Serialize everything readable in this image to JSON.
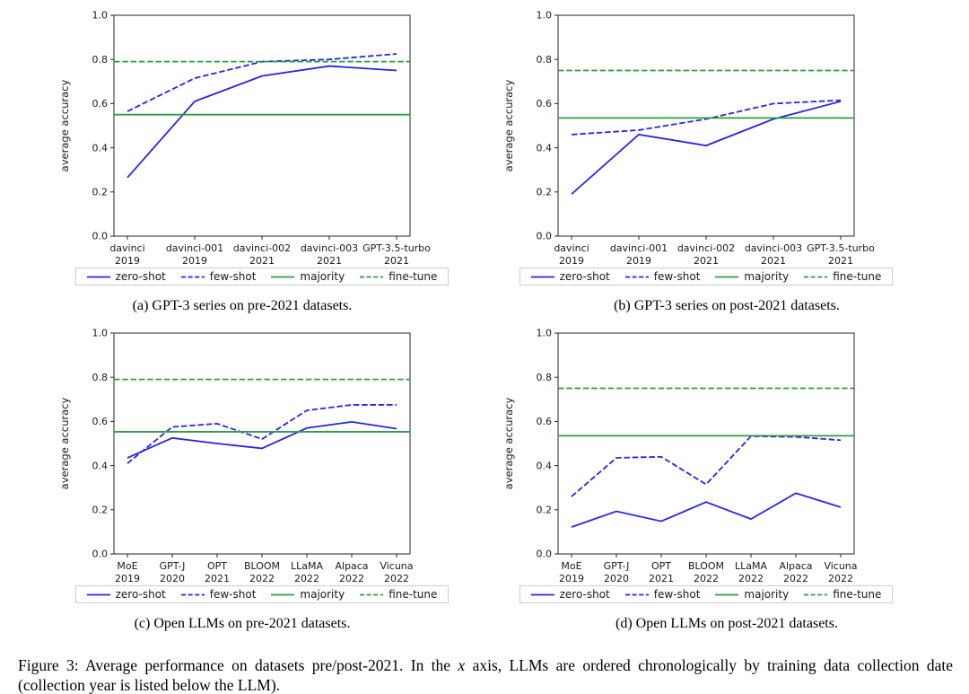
{
  "figure": {
    "caption_prefix": "Figure 3: Average performance on datasets pre/post-2021. In the ",
    "caption_italic": "x",
    "caption_suffix": " axis, LLMs are ordered chronologically by training data collection date (collection year is listed below the LLM)."
  },
  "palette": {
    "blue": "#2626e6",
    "green": "#2e9e40",
    "axis": "#262626",
    "text": "#1a1a1a",
    "legend_border": "#cccccc",
    "background": "#ffffff"
  },
  "chart_data": [
    {
      "id": "a",
      "type": "line",
      "caption": "(a) GPT-3 series on pre-2021 datasets.",
      "ylabel": "average accuracy",
      "ylim": [
        0.0,
        1.0
      ],
      "yticks": [
        0.0,
        0.2,
        0.4,
        0.6,
        0.8,
        1.0
      ],
      "ytick_labels": [
        "0.0",
        "0.2",
        "0.4",
        "0.6",
        "0.8",
        "1.0"
      ],
      "grid": false,
      "legend_position": "below",
      "categories": [
        {
          "label": "davinci",
          "year": "2019"
        },
        {
          "label": "davinci-001",
          "year": "2019"
        },
        {
          "label": "davinci-002",
          "year": "2021"
        },
        {
          "label": "davinci-003",
          "year": "2021"
        },
        {
          "label": "GPT-3.5-turbo",
          "year": "2021"
        }
      ],
      "series": [
        {
          "name": "zero-shot",
          "type": "line",
          "color": "#2626e6",
          "style": "solid",
          "values": [
            0.265,
            0.61,
            0.725,
            0.77,
            0.75
          ]
        },
        {
          "name": "few-shot",
          "type": "line",
          "color": "#2626e6",
          "style": "dashed",
          "values": [
            0.565,
            0.715,
            0.79,
            0.8,
            0.825
          ]
        },
        {
          "name": "majority",
          "type": "hline",
          "color": "#2e9e40",
          "style": "solid",
          "value": 0.55
        },
        {
          "name": "fine-tune",
          "type": "hline",
          "color": "#2e9e40",
          "style": "dashed",
          "value": 0.79
        }
      ]
    },
    {
      "id": "b",
      "type": "line",
      "caption": "(b) GPT-3 series on post-2021 datasets.",
      "ylabel": "average accuracy",
      "ylim": [
        0.0,
        1.0
      ],
      "yticks": [
        0.0,
        0.2,
        0.4,
        0.6,
        0.8,
        1.0
      ],
      "ytick_labels": [
        "0.0",
        "0.2",
        "0.4",
        "0.6",
        "0.8",
        "1.0"
      ],
      "grid": false,
      "legend_position": "below",
      "categories": [
        {
          "label": "davinci",
          "year": "2019"
        },
        {
          "label": "davinci-001",
          "year": "2019"
        },
        {
          "label": "davinci-002",
          "year": "2021"
        },
        {
          "label": "davinci-003",
          "year": "2021"
        },
        {
          "label": "GPT-3.5-turbo",
          "year": "2021"
        }
      ],
      "series": [
        {
          "name": "zero-shot",
          "type": "line",
          "color": "#2626e6",
          "style": "solid",
          "values": [
            0.19,
            0.46,
            0.41,
            0.53,
            0.61
          ]
        },
        {
          "name": "few-shot",
          "type": "line",
          "color": "#2626e6",
          "style": "dashed",
          "values": [
            0.46,
            0.48,
            0.53,
            0.6,
            0.615
          ]
        },
        {
          "name": "majority",
          "type": "hline",
          "color": "#2e9e40",
          "style": "solid",
          "value": 0.535
        },
        {
          "name": "fine-tune",
          "type": "hline",
          "color": "#2e9e40",
          "style": "dashed",
          "value": 0.75
        }
      ]
    },
    {
      "id": "c",
      "type": "line",
      "caption": "(c) Open LLMs on pre-2021 datasets.",
      "ylabel": "average accuracy",
      "ylim": [
        0.0,
        1.0
      ],
      "yticks": [
        0.0,
        0.2,
        0.4,
        0.6,
        0.8,
        1.0
      ],
      "ytick_labels": [
        "0.0",
        "0.2",
        "0.4",
        "0.6",
        "0.8",
        "1.0"
      ],
      "grid": false,
      "legend_position": "below",
      "categories": [
        {
          "label": "MoE",
          "year": "2019"
        },
        {
          "label": "GPT-J",
          "year": "2020"
        },
        {
          "label": "OPT",
          "year": "2021"
        },
        {
          "label": "BLOOM",
          "year": "2022"
        },
        {
          "label": "LLaMA",
          "year": "2022"
        },
        {
          "label": "Alpaca",
          "year": "2022"
        },
        {
          "label": "Vicuna",
          "year": "2022"
        }
      ],
      "series": [
        {
          "name": "zero-shot",
          "type": "line",
          "color": "#2626e6",
          "style": "solid",
          "values": [
            0.435,
            0.525,
            0.5,
            0.478,
            0.57,
            0.598,
            0.567
          ]
        },
        {
          "name": "few-shot",
          "type": "line",
          "color": "#2626e6",
          "style": "dashed",
          "values": [
            0.41,
            0.575,
            0.59,
            0.52,
            0.65,
            0.675,
            0.675
          ]
        },
        {
          "name": "majority",
          "type": "hline",
          "color": "#2e9e40",
          "style": "solid",
          "value": 0.553
        },
        {
          "name": "fine-tune",
          "type": "hline",
          "color": "#2e9e40",
          "style": "dashed",
          "value": 0.79
        }
      ]
    },
    {
      "id": "d",
      "type": "line",
      "caption": "(d) Open LLMs on post-2021 datasets.",
      "ylabel": "average accuracy",
      "ylim": [
        0.0,
        1.0
      ],
      "yticks": [
        0.0,
        0.2,
        0.4,
        0.6,
        0.8,
        1.0
      ],
      "ytick_labels": [
        "0.0",
        "0.2",
        "0.4",
        "0.6",
        "0.8",
        "1.0"
      ],
      "grid": false,
      "legend_position": "below",
      "categories": [
        {
          "label": "MoE",
          "year": "2019"
        },
        {
          "label": "GPT-J",
          "year": "2020"
        },
        {
          "label": "OPT",
          "year": "2021"
        },
        {
          "label": "BLOOM",
          "year": "2022"
        },
        {
          "label": "LLaMA",
          "year": "2022"
        },
        {
          "label": "Alpaca",
          "year": "2022"
        },
        {
          "label": "Vicuna",
          "year": "2022"
        }
      ],
      "series": [
        {
          "name": "zero-shot",
          "type": "line",
          "color": "#2626e6",
          "style": "solid",
          "values": [
            0.122,
            0.193,
            0.148,
            0.235,
            0.158,
            0.275,
            0.212
          ]
        },
        {
          "name": "few-shot",
          "type": "line",
          "color": "#2626e6",
          "style": "dashed",
          "values": [
            0.26,
            0.435,
            0.44,
            0.315,
            0.533,
            0.53,
            0.515
          ]
        },
        {
          "name": "majority",
          "type": "hline",
          "color": "#2e9e40",
          "style": "solid",
          "value": 0.535
        },
        {
          "name": "fine-tune",
          "type": "hline",
          "color": "#2e9e40",
          "style": "dashed",
          "value": 0.75
        }
      ]
    }
  ]
}
